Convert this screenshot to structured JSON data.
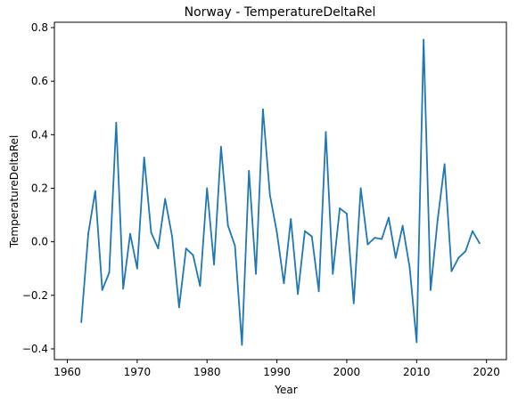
{
  "chart_data": {
    "type": "line",
    "title": "Norway - TemperatureDeltaRel",
    "xlabel": "Year",
    "ylabel": "TemperatureDeltaRel",
    "xlim": [
      1958.15,
      2022.85
    ],
    "ylim": [
      -0.44,
      0.82
    ],
    "xticks": [
      1960,
      1970,
      1980,
      1990,
      2000,
      2010,
      2020
    ],
    "yticks": [
      -0.4,
      -0.2,
      0.0,
      0.2,
      0.4,
      0.6,
      0.8
    ],
    "xtick_labels": [
      "1960",
      "1970",
      "1980",
      "1990",
      "2000",
      "2010",
      "2020"
    ],
    "ytick_labels": [
      "−0.4",
      "−0.2",
      "0.0",
      "0.2",
      "0.4",
      "0.6",
      "0.8"
    ],
    "grid": false,
    "color": "#1f77b4",
    "x": [
      1962,
      1963,
      1964,
      1965,
      1966,
      1967,
      1968,
      1969,
      1970,
      1971,
      1972,
      1973,
      1974,
      1975,
      1976,
      1977,
      1978,
      1979,
      1980,
      1981,
      1982,
      1983,
      1984,
      1985,
      1986,
      1987,
      1988,
      1989,
      1990,
      1991,
      1992,
      1993,
      1994,
      1995,
      1996,
      1997,
      1998,
      1999,
      2000,
      2001,
      2002,
      2003,
      2004,
      2005,
      2006,
      2007,
      2008,
      2009,
      2010,
      2011,
      2012,
      2013,
      2014,
      2015,
      2016,
      2017,
      2018,
      2019
    ],
    "series": [
      {
        "values": [
          -0.3,
          0.03,
          0.19,
          -0.18,
          -0.115,
          0.445,
          -0.175,
          0.03,
          -0.1,
          0.315,
          0.035,
          -0.025,
          0.16,
          0.02,
          -0.245,
          -0.025,
          -0.05,
          -0.165,
          0.2,
          -0.085,
          0.355,
          0.06,
          -0.015,
          -0.385,
          0.265,
          -0.12,
          0.495,
          0.175,
          0.035,
          -0.155,
          0.085,
          -0.195,
          0.04,
          0.02,
          -0.185,
          0.41,
          -0.12,
          0.125,
          0.105,
          -0.23,
          0.2,
          -0.01,
          0.015,
          0.01,
          0.09,
          -0.06,
          0.06,
          -0.095,
          -0.375,
          0.755,
          -0.18,
          0.08,
          0.29,
          -0.11,
          -0.06,
          -0.035,
          0.04,
          -0.005
        ]
      }
    ]
  }
}
